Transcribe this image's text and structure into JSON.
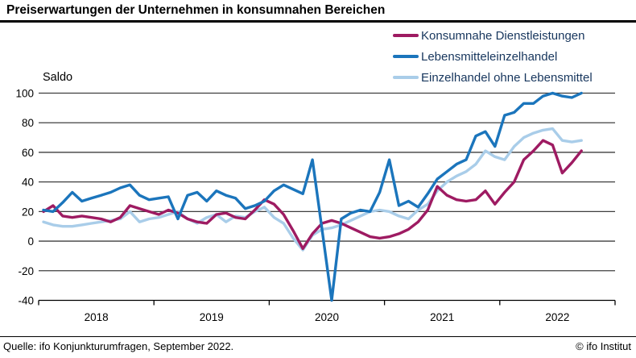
{
  "header": {
    "title": "Preiserwartungen der Unternehmen in konsumnahen Bereichen"
  },
  "axis": {
    "y_title": "Saldo",
    "yticks": [
      100,
      80,
      60,
      40,
      20,
      0,
      -20,
      -40
    ],
    "year_labels": [
      "2018",
      "2019",
      "2020",
      "2021",
      "2022"
    ]
  },
  "footer": {
    "source": "Quelle: ifo Konjunkturumfragen, September 2022.",
    "copyright": "© ifo Institut"
  },
  "colors": {
    "grid": "#3f3f3f",
    "axis_line": "#000000",
    "legend_text": "#17365d",
    "series1": "#9e1b62",
    "series2": "#1b75bc",
    "series3": "#a9cde9"
  },
  "chart_data": {
    "type": "line",
    "title": "Preiserwartungen der Unternehmen in konsumnahen Bereichen",
    "xlabel": "",
    "ylabel": "Saldo",
    "ylim": [
      -40,
      100
    ],
    "yticks": [
      100,
      80,
      60,
      40,
      20,
      0,
      -20,
      -40
    ],
    "grid": true,
    "legend_position": "top-right",
    "x_start_month": "2018-01",
    "x_end_month": "2022-09",
    "x_axis_years": [
      "2018",
      "2019",
      "2020",
      "2021",
      "2022"
    ],
    "frequency": "monthly",
    "series": [
      {
        "name": "Konsumnahe Dienstleistungen",
        "color": "#9e1b62",
        "values": [
          20,
          24,
          17,
          16,
          17,
          16,
          15,
          13,
          16,
          24,
          22,
          20,
          18,
          21,
          19,
          15,
          13,
          12,
          18,
          19,
          16,
          15,
          21,
          28,
          25,
          18,
          7,
          -5,
          5,
          12,
          14,
          12,
          9,
          6,
          3,
          2,
          3,
          5,
          8,
          13,
          21,
          37,
          31,
          28,
          27,
          28,
          34,
          25,
          33,
          40,
          55,
          61,
          68,
          65,
          46,
          53,
          61
        ]
      },
      {
        "name": "Lebensmitteleinzelhandel",
        "color": "#1b75bc",
        "values": [
          21,
          20,
          26,
          33,
          27,
          29,
          31,
          33,
          36,
          38,
          31,
          28,
          29,
          30,
          15,
          31,
          33,
          27,
          34,
          31,
          29,
          22,
          24,
          27,
          34,
          38,
          35,
          32,
          55,
          8,
          -40,
          15,
          19,
          21,
          20,
          33,
          55,
          24,
          27,
          23,
          32,
          42,
          47,
          52,
          55,
          71,
          74,
          64,
          85,
          87,
          93,
          93,
          98,
          100,
          98,
          97,
          100
        ]
      },
      {
        "name": "Einzelhandel ohne Lebensmittel",
        "color": "#a9cde9",
        "values": [
          13,
          11,
          10,
          10,
          11,
          12,
          13,
          14,
          15,
          20,
          13,
          15,
          16,
          18,
          20,
          15,
          12,
          16,
          18,
          13,
          17,
          16,
          20,
          23,
          16,
          12,
          2,
          -6,
          4,
          8,
          9,
          11,
          14,
          17,
          20,
          21,
          20,
          17,
          15,
          21,
          25,
          34,
          40,
          44,
          47,
          52,
          61,
          57,
          55,
          64,
          70,
          73,
          75,
          76,
          68,
          67,
          68
        ]
      }
    ]
  }
}
